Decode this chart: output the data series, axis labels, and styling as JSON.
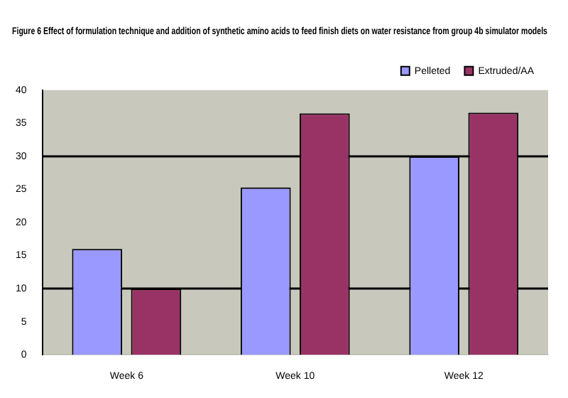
{
  "chart_data": {
    "type": "bar",
    "title": "Figure 6 Effect of formulation technique and addition of synthetic amino acids to feed finish diets on water resistance from group 4b simulator models",
    "categories": [
      "Week 6",
      "Week 10",
      "Week 12"
    ],
    "series": [
      {
        "name": "Pelleted",
        "color": "#9999ff",
        "values": [
          16,
          25.3,
          30
        ]
      },
      {
        "name": "Extruded/AA",
        "color": "#993366",
        "values": [
          10,
          36.5,
          36.6
        ]
      }
    ],
    "ylim": [
      0,
      40
    ],
    "yticks": [
      0,
      5,
      10,
      15,
      20,
      25,
      30,
      35,
      40
    ],
    "legend": "top right",
    "ref_lines": [
      {
        "axis": "y",
        "value": 10,
        "color": "#000000"
      },
      {
        "axis": "y",
        "value": 30,
        "color": "#000000"
      }
    ]
  }
}
